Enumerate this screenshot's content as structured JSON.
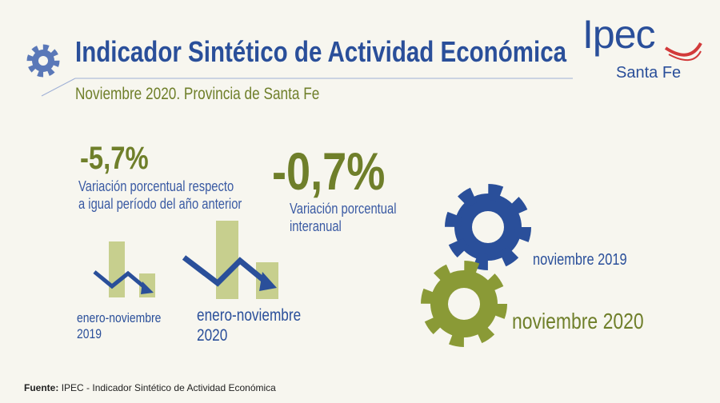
{
  "header": {
    "title": "Indicador Sintético de Actividad Económica",
    "subtitle": "Noviembre 2020. Provincia de Santa Fe"
  },
  "logo": {
    "name": "Ipec",
    "region": "Santa Fe"
  },
  "stats": [
    {
      "value": "-5,7%",
      "description": [
        "Variación porcentual respecto",
        "a igual período del año anterior"
      ]
    },
    {
      "value": "-0,7%",
      "description": [
        "Variación porcentual",
        "interanual"
      ]
    }
  ],
  "periods": [
    [
      "enero-noviembre",
      "2019"
    ],
    [
      "enero-noviembre",
      "2020"
    ]
  ],
  "gears": [
    "noviembre 2019",
    "noviembre 2020"
  ],
  "source": {
    "label": "Fuente:",
    "text": "IPEC - Indicador Sintético de Actividad Económica"
  }
}
